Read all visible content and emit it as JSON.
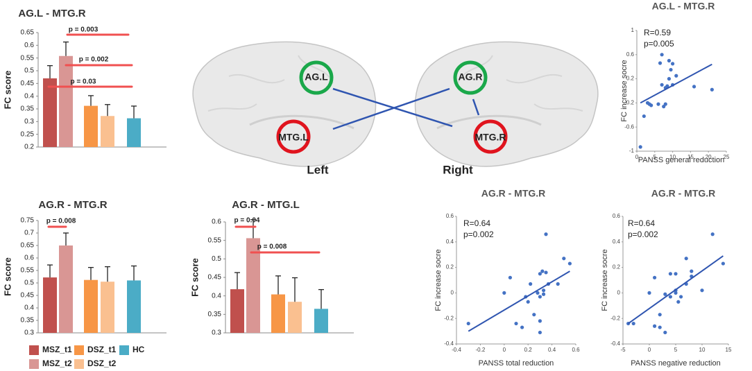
{
  "legend": [
    {
      "name": "MSZ_t1",
      "color": "#c0504d"
    },
    {
      "name": "MSZ_t2",
      "color": "#d99694"
    },
    {
      "name": "DSZ_t1",
      "color": "#f79646"
    },
    {
      "name": "DSZ_t2",
      "color": "#fac090"
    },
    {
      "name": "HC",
      "color": "#4bacc6"
    }
  ],
  "brain": {
    "regions": [
      "AG.L",
      "MTG.L",
      "AG.R",
      "MTG.R"
    ],
    "hemispheres": [
      "Left",
      "Right"
    ]
  },
  "chart_data": [
    {
      "type": "bar",
      "title": "AG.L - MTG.R",
      "y_label": "FC score",
      "values": [
        0.47,
        0.558,
        0.362,
        0.322,
        0.313
      ],
      "errors": [
        0.05,
        0.055,
        0.04,
        0.045,
        0.048
      ],
      "ylim": [
        0.2,
        0.65
      ],
      "yticks": [
        0.2,
        0.25,
        0.3,
        0.35,
        0.4,
        0.45,
        0.5,
        0.55,
        0.6,
        0.65
      ],
      "annotations": [
        "p = 0.003",
        "p = 0.002",
        "p = 0.03"
      ]
    },
    {
      "type": "bar",
      "title": "AG.R - MTG.R",
      "y_label": "FC score",
      "values": [
        0.522,
        0.65,
        0.512,
        0.505,
        0.51
      ],
      "errors": [
        0.05,
        0.05,
        0.05,
        0.06,
        0.058
      ],
      "ylim": [
        0.3,
        0.75
      ],
      "yticks": [
        0.3,
        0.35,
        0.4,
        0.45,
        0.5,
        0.55,
        0.6,
        0.65,
        0.7,
        0.75
      ],
      "annotations": [
        "p = 0.008"
      ]
    },
    {
      "type": "bar",
      "title": "AG.R - MTG.L",
      "y_label": "FC score",
      "values": [
        0.418,
        0.556,
        0.404,
        0.384,
        0.365
      ],
      "errors": [
        0.045,
        0.05,
        0.05,
        0.065,
        0.052
      ],
      "ylim": [
        0.3,
        0.6
      ],
      "yticks": [
        0.3,
        0.35,
        0.4,
        0.45,
        0.5,
        0.55,
        0.6
      ],
      "annotations": [
        "p = 0.04",
        "p = 0.008"
      ]
    },
    {
      "type": "scatter",
      "title": "AG.L - MTG.R",
      "x_label": "PANSS general reduction",
      "y_label": "FC increase socre",
      "stats": [
        "R=0.59",
        "p=0.005"
      ],
      "color": "#4472c4",
      "x": [
        1,
        2,
        3,
        3.5,
        4,
        6,
        6.5,
        7,
        7.5,
        7,
        8,
        8,
        8.5,
        9,
        9,
        9.5,
        10,
        10,
        11,
        16,
        21
      ],
      "y": [
        -0.93,
        -0.42,
        -0.2,
        -0.22,
        -0.24,
        -0.22,
        0.46,
        0.6,
        -0.26,
        0.1,
        -0.22,
        0.05,
        0.08,
        0.5,
        0.2,
        0.35,
        0.45,
        0.1,
        0.25,
        0.07,
        0.02
      ],
      "fit": {
        "x": [
          1,
          21
        ],
        "y": [
          -0.2,
          0.44
        ]
      },
      "xlim": [
        0,
        25
      ],
      "xticks": [
        0,
        5,
        10,
        15,
        20,
        25
      ],
      "ylim": [
        -1,
        1
      ],
      "yticks": [
        -1,
        -0.6,
        -0.2,
        0.2,
        0.6,
        1
      ]
    },
    {
      "type": "scatter",
      "title": "AG.R - MTG.R",
      "x_label": "PANSS total reduction",
      "y_label": "FC increase socre",
      "stats": [
        "R=0.64",
        "p=0.002"
      ],
      "color": "#4472c4",
      "x": [
        -0.3,
        0,
        0.05,
        0.1,
        0.15,
        0.18,
        0.2,
        0.22,
        0.25,
        0.28,
        0.3,
        0.3,
        0.3,
        0.32,
        0.33,
        0.33,
        0.35,
        0.35,
        0.37,
        0.3,
        0.5,
        0.55,
        0.45
      ],
      "y": [
        -0.24,
        0,
        0.12,
        -0.24,
        -0.27,
        -0.03,
        -0.07,
        0.07,
        -0.17,
        0,
        0.15,
        -0.22,
        -0.03,
        0.17,
        -0.01,
        0.02,
        0.16,
        0.46,
        0.07,
        -0.31,
        0.27,
        0.23,
        0.07
      ],
      "fit": {
        "x": [
          -0.3,
          0.55
        ],
        "y": [
          -0.3,
          0.17
        ]
      },
      "xlim": [
        -0.4,
        0.6
      ],
      "xticks": [
        -0.4,
        -0.2,
        0,
        0.2,
        0.4,
        0.6
      ],
      "ylim": [
        -0.4,
        0.6
      ],
      "yticks": [
        -0.4,
        -0.2,
        0,
        0.2,
        0.4,
        0.6
      ]
    },
    {
      "type": "scatter",
      "title": "AG.R - MTG.R",
      "x_label": "PANSS negative reduction",
      "y_label": "FC increase socre",
      "stats": [
        "R=0.64",
        "p=0.002"
      ],
      "color": "#4472c4",
      "x": [
        -4,
        -3,
        0,
        1,
        1,
        2,
        2,
        3,
        3,
        4,
        4,
        5,
        5,
        5,
        5.5,
        6,
        7,
        7,
        8,
        8,
        10,
        12,
        14
      ],
      "y": [
        -0.24,
        -0.24,
        0,
        0.12,
        -0.26,
        -0.17,
        -0.27,
        -0.01,
        -0.31,
        0.15,
        -0.03,
        0,
        0.02,
        0.15,
        -0.07,
        -0.03,
        0.27,
        0.07,
        0.17,
        0.13,
        0.02,
        0.46,
        0.23
      ],
      "fit": {
        "x": [
          -4,
          14
        ],
        "y": [
          -0.24,
          0.29
        ]
      },
      "xlim": [
        -5,
        15
      ],
      "xticks": [
        -5,
        0,
        5,
        10,
        15
      ],
      "ylim": [
        -0.4,
        0.6
      ],
      "yticks": [
        -0.4,
        -0.2,
        0,
        0.2,
        0.4,
        0.6
      ]
    }
  ]
}
